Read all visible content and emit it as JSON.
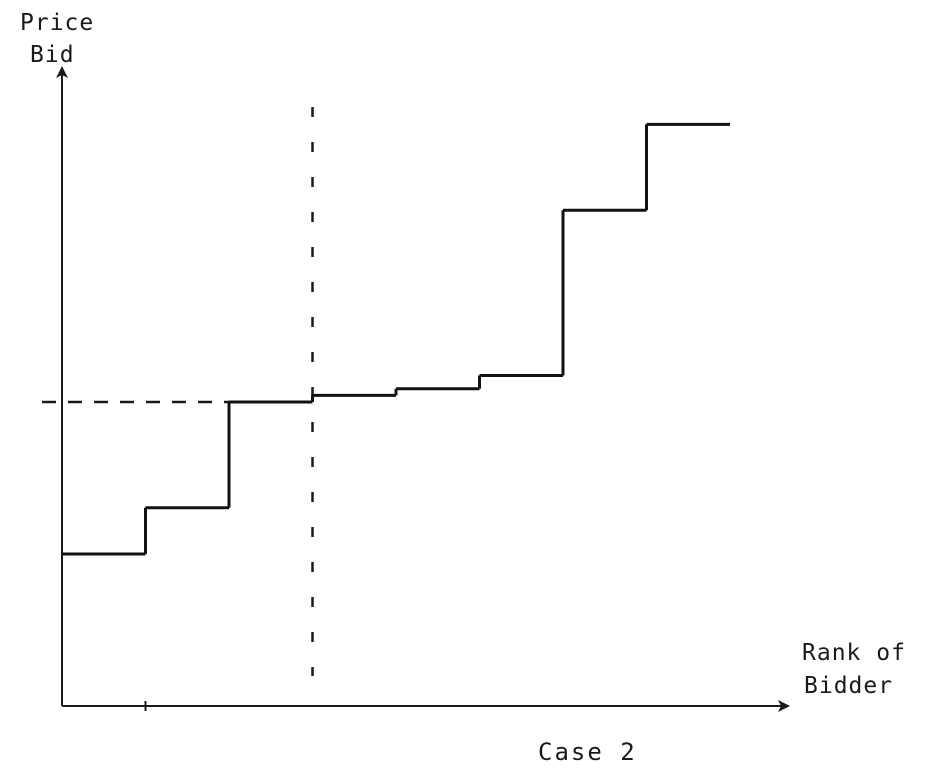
{
  "chart_data": {
    "type": "line",
    "subtype": "step",
    "title": "",
    "caption": "Case 2",
    "ylabel_lines": [
      "Price",
      "Bid"
    ],
    "xlabel_lines": [
      "Rank of",
      "Bidder"
    ],
    "xlim": [
      0,
      8
    ],
    "ylim": [
      0,
      10
    ],
    "series": [
      {
        "steps": [
          {
            "x_start": 0,
            "x_end": 1,
            "y": 2.3
          },
          {
            "x_start": 1,
            "x_end": 2,
            "y": 3.0
          },
          {
            "x_start": 2,
            "x_end": 3,
            "y": 4.6
          },
          {
            "x_start": 3,
            "x_end": 4,
            "y": 4.7
          },
          {
            "x_start": 4,
            "x_end": 5,
            "y": 4.8
          },
          {
            "x_start": 5,
            "x_end": 6,
            "y": 5.0
          },
          {
            "x_start": 6,
            "x_end": 7,
            "y": 7.5
          },
          {
            "x_start": 7,
            "x_end": 8,
            "y": 8.8
          }
        ]
      }
    ],
    "reference_lines": [
      {
        "orientation": "vertical",
        "x": 3,
        "style": "dashed"
      },
      {
        "orientation": "horizontal",
        "y": 4.6,
        "style": "dashed",
        "x_from": 0,
        "x_to": 2
      }
    ],
    "x_ticks": [
      1
    ],
    "grid": false,
    "legend": "none"
  },
  "colors": {
    "ink": "#111111",
    "background": "#ffffff"
  }
}
